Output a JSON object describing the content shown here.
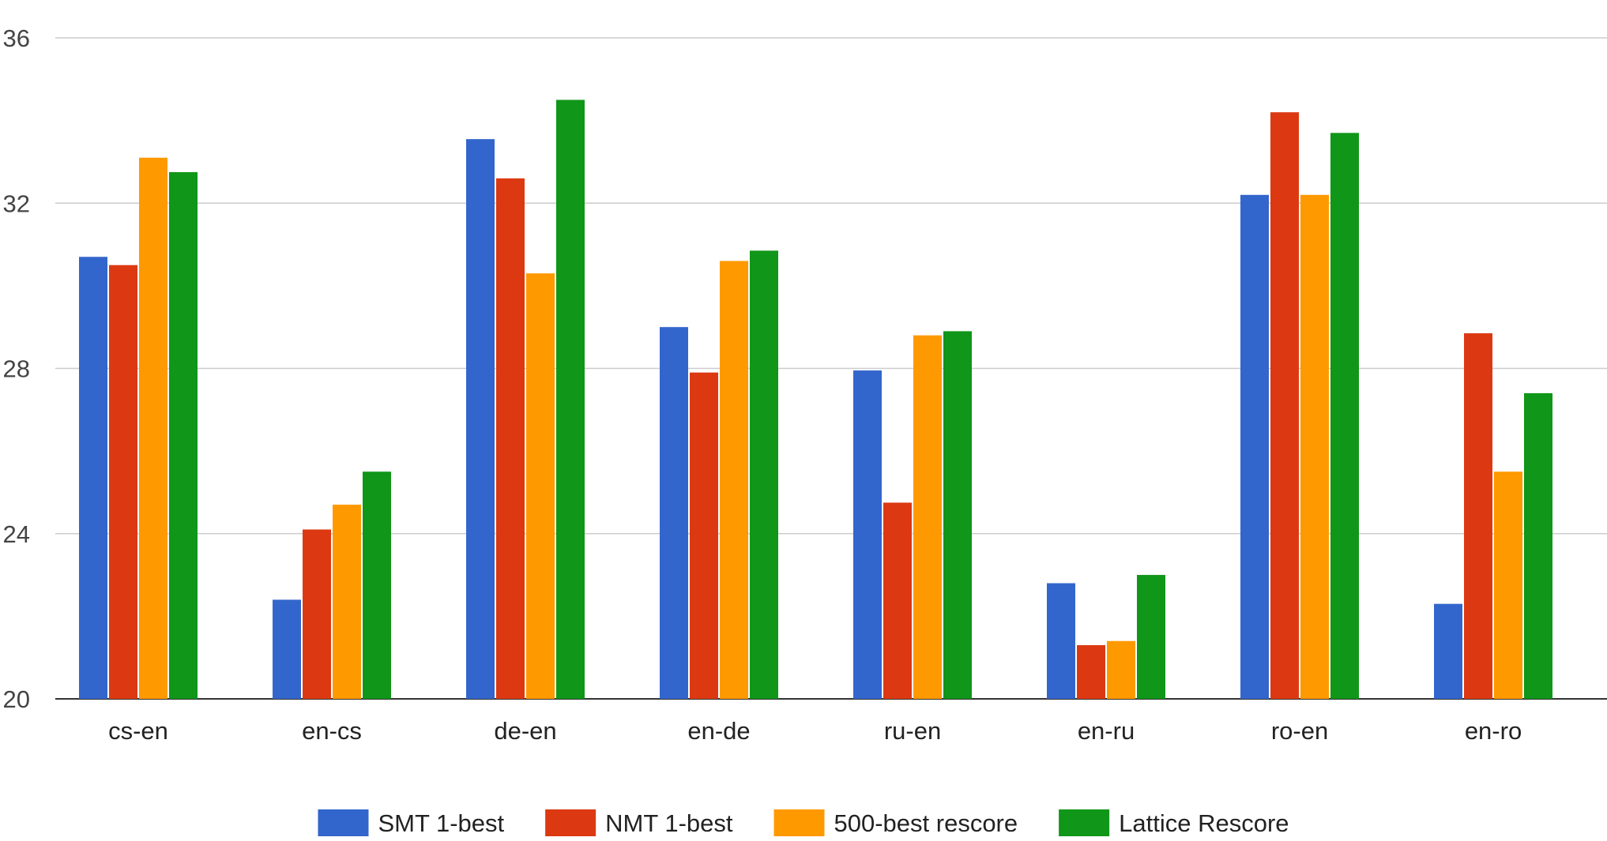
{
  "chart_data": {
    "type": "bar",
    "title": "",
    "xlabel": "",
    "ylabel": "",
    "ylim": [
      20,
      36
    ],
    "yticks": [
      20,
      24,
      28,
      32,
      36
    ],
    "grid": true,
    "legend_position": "bottom",
    "categories": [
      "cs-en",
      "en-cs",
      "de-en",
      "en-de",
      "ru-en",
      "en-ru",
      "ro-en",
      "en-ro"
    ],
    "series": [
      {
        "name": "SMT 1-best",
        "color": "#3366cc",
        "values": [
          30.7,
          22.4,
          33.55,
          29.0,
          27.95,
          22.8,
          32.2,
          22.3
        ]
      },
      {
        "name": "NMT 1-best",
        "color": "#dc3912",
        "values": [
          30.5,
          24.1,
          32.6,
          27.9,
          24.75,
          21.3,
          34.2,
          28.85
        ]
      },
      {
        "name": "500-best rescore",
        "color": "#ff9900",
        "values": [
          33.1,
          24.7,
          30.3,
          30.6,
          28.8,
          21.4,
          32.2,
          25.5
        ]
      },
      {
        "name": "Lattice Rescore",
        "color": "#109618",
        "values": [
          32.75,
          25.5,
          34.5,
          30.85,
          28.9,
          23.0,
          33.7,
          27.4
        ]
      }
    ]
  }
}
